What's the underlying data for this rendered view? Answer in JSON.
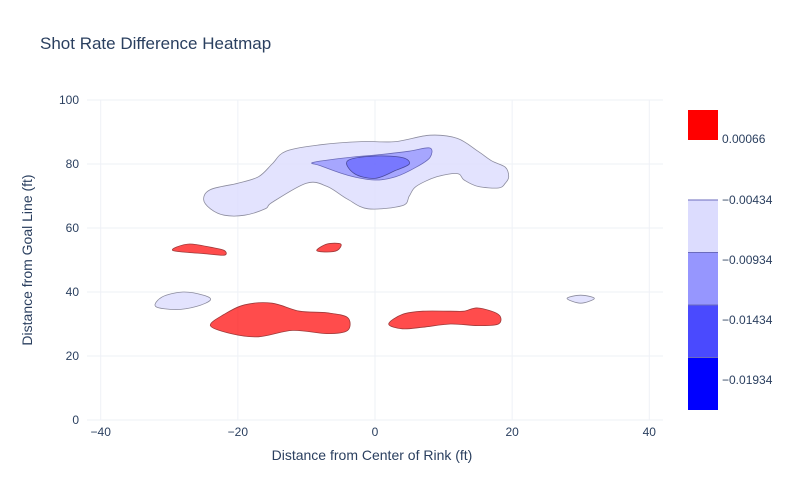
{
  "chart_data": {
    "type": "heatmap",
    "subtype": "contour",
    "title": "Shot Rate Difference Heatmap",
    "xlabel": "Distance from Center of Rink (ft)",
    "ylabel": "Distance from Goal Line (ft)",
    "xlim": [
      -42,
      42
    ],
    "ylim": [
      0,
      100
    ],
    "x_ticks": [
      "−40",
      "−20",
      "0",
      "20",
      "40"
    ],
    "x_tick_values": [
      -40,
      -20,
      0,
      20,
      40
    ],
    "y_ticks": [
      "0",
      "20",
      "40",
      "60",
      "80",
      "100"
    ],
    "y_tick_values": [
      0,
      20,
      40,
      60,
      80,
      100
    ],
    "grid": true,
    "colorbar": {
      "labels": [
        "0.00066",
        "−0.00434",
        "−0.00934",
        "−0.01434",
        "−0.01934"
      ],
      "positive_color": "#ff0000",
      "levels": [
        {
          "color": "#dcdcfe"
        },
        {
          "color": "#9696fe"
        },
        {
          "color": "#4a4afe"
        },
        {
          "color": "#0000ff"
        }
      ]
    },
    "contours": [
      {
        "name": "negative-outer",
        "fill": "#dcdcfe",
        "opacity": 0.8,
        "stroke": "#8c8c9e",
        "points": [
          [
            -25,
            69
          ],
          [
            -24,
            72
          ],
          [
            -20,
            74
          ],
          [
            -17,
            76
          ],
          [
            -15,
            80
          ],
          [
            -13,
            84
          ],
          [
            -8,
            86
          ],
          [
            -2,
            87
          ],
          [
            3,
            87
          ],
          [
            8,
            89
          ],
          [
            12,
            88
          ],
          [
            15,
            84
          ],
          [
            17,
            81
          ],
          [
            19,
            79
          ],
          [
            19.5,
            76
          ],
          [
            19,
            74
          ],
          [
            18,
            72.5
          ],
          [
            15,
            73
          ],
          [
            13,
            75
          ],
          [
            12,
            77
          ],
          [
            9,
            76
          ],
          [
            6,
            73
          ],
          [
            5,
            70
          ],
          [
            4,
            67
          ],
          [
            -1,
            66
          ],
          [
            -4,
            69
          ],
          [
            -7,
            73
          ],
          [
            -10,
            74
          ],
          [
            -15,
            68
          ],
          [
            -16,
            66
          ],
          [
            -19,
            64
          ],
          [
            -22,
            64
          ],
          [
            -24,
            66
          ]
        ]
      },
      {
        "name": "negative-outer",
        "fill": "#dcdcfe",
        "opacity": 0.8,
        "stroke": "#8c8c9e",
        "points": [
          [
            -32,
            35.5
          ],
          [
            -31,
            38.5
          ],
          [
            -28,
            40
          ],
          [
            -25,
            39
          ],
          [
            -24,
            37.5
          ],
          [
            -26,
            35.5
          ],
          [
            -29,
            34.5
          ]
        ]
      },
      {
        "name": "negative-outer",
        "fill": "#dcdcfe",
        "opacity": 0.8,
        "stroke": "#8c8c9e",
        "points": [
          [
            28,
            38
          ],
          [
            30,
            39
          ],
          [
            32,
            38
          ],
          [
            30,
            36.5
          ]
        ]
      },
      {
        "name": "negative-mid",
        "fill": "#9696fe",
        "opacity": 0.8,
        "stroke": "#6a6ab8",
        "points": [
          [
            -9,
            80.5
          ],
          [
            -4,
            82
          ],
          [
            1,
            83
          ],
          [
            5,
            84
          ],
          [
            8,
            85
          ],
          [
            8,
            82
          ],
          [
            6,
            79
          ],
          [
            3,
            76
          ],
          [
            0,
            75
          ],
          [
            -4,
            76.5
          ],
          [
            -8,
            79.5
          ]
        ]
      },
      {
        "name": "negative-inner",
        "fill": "#4a4afe",
        "opacity": 0.5,
        "stroke": "#4a4a9e",
        "points": [
          [
            -4,
            81
          ],
          [
            0,
            82.5
          ],
          [
            4,
            82
          ],
          [
            5,
            80
          ],
          [
            3,
            78
          ],
          [
            0,
            75.5
          ],
          [
            -3,
            77
          ]
        ]
      },
      {
        "name": "positive",
        "fill": "#ff0000",
        "opacity": 0.7,
        "stroke": "#9e3a3a",
        "points": [
          [
            -29,
            54
          ],
          [
            -27,
            55
          ],
          [
            -24,
            54
          ],
          [
            -22,
            53
          ],
          [
            -22,
            51.5
          ],
          [
            -25,
            52
          ],
          [
            -28,
            52.5
          ],
          [
            -29.5,
            53
          ]
        ]
      },
      {
        "name": "positive",
        "fill": "#ff0000",
        "opacity": 0.7,
        "stroke": "#9e3a3a",
        "points": [
          [
            -8.5,
            53
          ],
          [
            -7,
            55
          ],
          [
            -5,
            55
          ],
          [
            -5.5,
            53
          ],
          [
            -7,
            52.5
          ]
        ]
      },
      {
        "name": "positive",
        "fill": "#ff0000",
        "opacity": 0.7,
        "stroke": "#9e3a3a",
        "points": [
          [
            -24,
            29.5
          ],
          [
            -22,
            33
          ],
          [
            -19,
            36
          ],
          [
            -15,
            36.5
          ],
          [
            -11,
            34
          ],
          [
            -7,
            33.5
          ],
          [
            -4,
            32
          ],
          [
            -4,
            28
          ],
          [
            -7,
            27
          ],
          [
            -12,
            28
          ],
          [
            -17,
            26
          ],
          [
            -21,
            27
          ]
        ]
      },
      {
        "name": "positive",
        "fill": "#ff0000",
        "opacity": 0.7,
        "stroke": "#9e3a3a",
        "points": [
          [
            2,
            30
          ],
          [
            4,
            33
          ],
          [
            7,
            34
          ],
          [
            11,
            34
          ],
          [
            13,
            34
          ],
          [
            15,
            35
          ],
          [
            18,
            33
          ],
          [
            18,
            30
          ],
          [
            15,
            29.5
          ],
          [
            11,
            30
          ],
          [
            7,
            29
          ],
          [
            4,
            28.5
          ]
        ]
      }
    ]
  }
}
